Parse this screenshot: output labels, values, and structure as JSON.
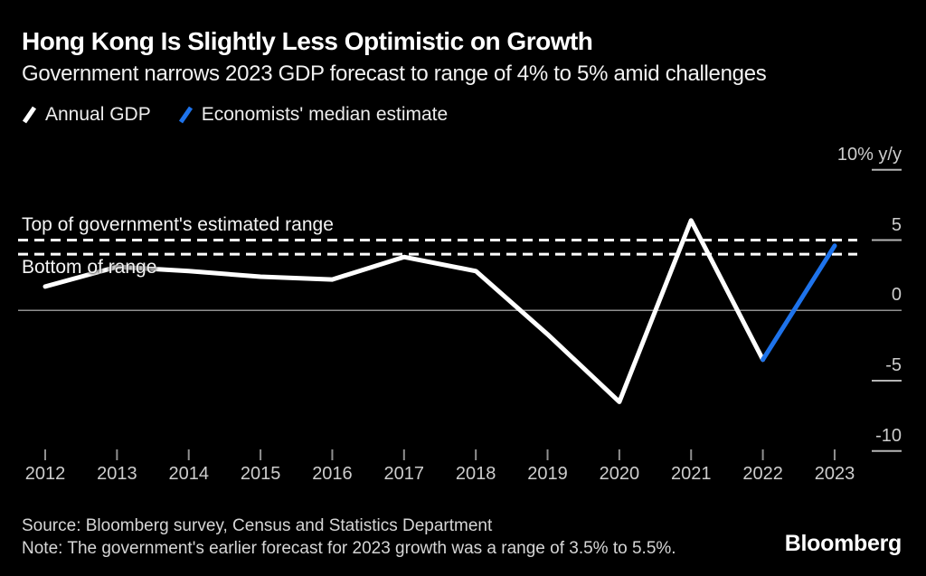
{
  "chart_data": {
    "type": "line",
    "title": "Hong Kong Is Slightly Less Optimistic on Growth",
    "subtitle": "Government narrows 2023 GDP forecast to range of 4% to 5% amid challenges",
    "unit": "% y/y",
    "x": [
      2012,
      2013,
      2014,
      2015,
      2016,
      2017,
      2018,
      2019,
      2020,
      2021,
      2022,
      2023
    ],
    "series": [
      {
        "name": "Annual GDP",
        "color": "#ffffff",
        "x": [
          2012,
          2013,
          2014,
          2015,
          2016,
          2017,
          2018,
          2019,
          2020,
          2021,
          2022
        ],
        "values": [
          1.7,
          3.1,
          2.8,
          2.4,
          2.2,
          3.8,
          2.8,
          -1.7,
          -6.5,
          6.4,
          -3.5
        ]
      },
      {
        "name": "Economists' median estimate",
        "color": "#1e73eb",
        "x": [
          2022,
          2023
        ],
        "values": [
          -3.5,
          4.6
        ]
      }
    ],
    "reference_lines": [
      {
        "label": "Top of government's estimated range",
        "value": 5,
        "style": "dashed",
        "color": "#ffffff"
      },
      {
        "label": "Bottom of range",
        "value": 4,
        "style": "dashed",
        "color": "#ffffff"
      }
    ],
    "y_axis": {
      "ticks": [
        {
          "value": 10,
          "label": "10% y/y"
        },
        {
          "value": 5,
          "label": "5"
        },
        {
          "value": 0,
          "label": "0"
        },
        {
          "value": -5,
          "label": "-5"
        },
        {
          "value": -10,
          "label": "-10"
        }
      ],
      "range": [
        -12,
        11
      ],
      "gridlines": false
    },
    "x_axis": {
      "tick_labels": [
        "2012",
        "2013",
        "2014",
        "2015",
        "2016",
        "2017",
        "2018",
        "2019",
        "2020",
        "2021",
        "2022",
        "2023"
      ]
    },
    "legend_position": "top-left"
  },
  "footer": {
    "source": "Source: Bloomberg survey, Census and Statistics Department",
    "note": "Note: The government's earlier forecast for 2023 growth was a range of 3.5% to 5.5%.",
    "logo": "Bloomberg"
  },
  "colors": {
    "background": "#000000",
    "annual_gdp_line": "#ffffff",
    "estimate_line": "#1e73eb",
    "axis_text": "#cdcdcd",
    "zero_line": "#909090"
  }
}
